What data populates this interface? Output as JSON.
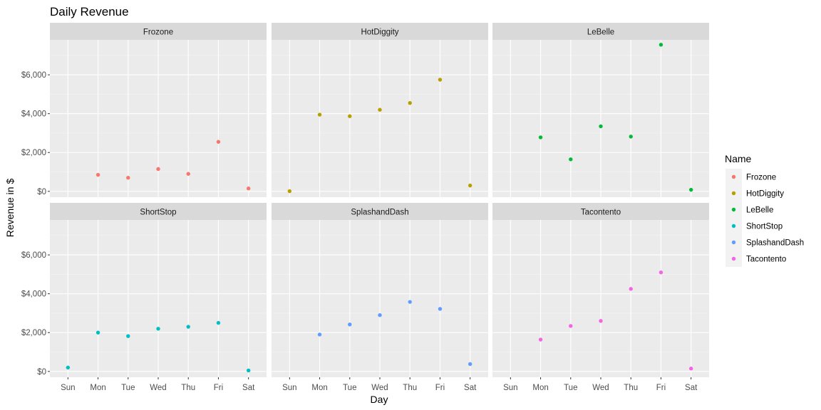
{
  "chart_data": {
    "type": "scatter",
    "title": "Daily Revenue",
    "xlabel": "Day",
    "ylabel": "Revenue in $",
    "categories": [
      "Sun",
      "Mon",
      "Tue",
      "Wed",
      "Thu",
      "Fri",
      "Sat"
    ],
    "ylim": [
      -300,
      7800
    ],
    "yticks": [
      0,
      2000,
      4000,
      6000
    ],
    "ytick_labels": [
      "$0",
      "$2,000",
      "$4,000",
      "$6,000"
    ],
    "grid": true,
    "facet_layout": {
      "rows": 2,
      "cols": 3
    },
    "legend": {
      "title": "Name",
      "position": "right"
    },
    "series": [
      {
        "name": "Frozone",
        "color": "#F8766D",
        "values": [
          null,
          850,
          700,
          1150,
          900,
          2550,
          150
        ]
      },
      {
        "name": "HotDiggity",
        "color": "#B79F00",
        "values": [
          10,
          3950,
          3870,
          4200,
          4550,
          5750,
          300
        ]
      },
      {
        "name": "LeBelle",
        "color": "#00BA38",
        "values": [
          null,
          2780,
          1650,
          3350,
          2820,
          7550,
          80
        ]
      },
      {
        "name": "ShortStop",
        "color": "#00BFC4",
        "values": [
          200,
          2000,
          1820,
          2200,
          2300,
          2500,
          50
        ]
      },
      {
        "name": "SplashandDash",
        "color": "#619CFF",
        "values": [
          null,
          1900,
          2420,
          2900,
          3580,
          3220,
          380
        ]
      },
      {
        "name": "Tacontento",
        "color": "#F564E3",
        "values": [
          null,
          1640,
          2340,
          2600,
          4250,
          5100,
          150
        ]
      }
    ]
  }
}
